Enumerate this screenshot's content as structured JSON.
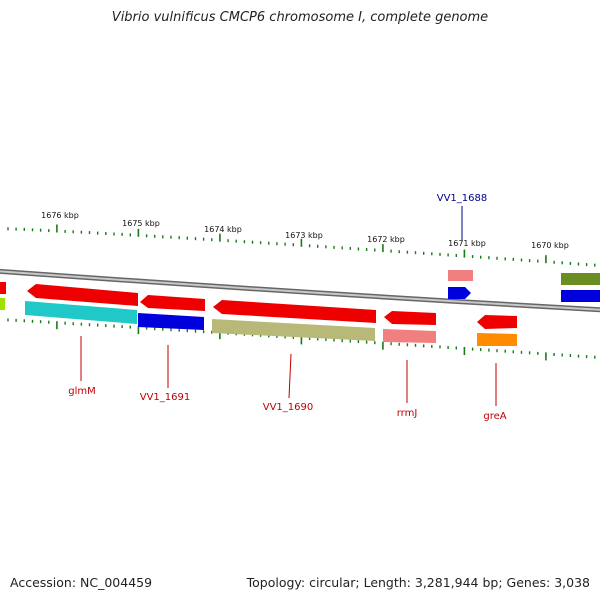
{
  "title": "Vibrio vulnificus CMCP6 chromosome I, complete genome",
  "footer": {
    "accession": "Accession: NC_004459",
    "summary": "Topology: circular; Length: 3,281,944 bp; Genes: 3,038"
  },
  "ruler_labels": [
    "1676 kbp",
    "1675 kbp",
    "1674 kbp",
    "1673 kbp",
    "1672 kbp",
    "1671 kbp",
    "1670 kbp"
  ],
  "gene_labels": [
    {
      "text": "VV1_1688",
      "color": "#00008b"
    },
    {
      "text": "glmM",
      "color": "#c00000"
    },
    {
      "text": "VV1_1691",
      "color": "#c00000"
    },
    {
      "text": "VV1_1690",
      "color": "#c00000"
    },
    {
      "text": "rrmJ",
      "color": "#c00000"
    },
    {
      "text": "greA",
      "color": "#c00000"
    }
  ],
  "colors": {
    "backbone": "#8f8f8f",
    "tick": "#1a7a1a",
    "red": "#ee0000",
    "cyan": "#20c8c8",
    "blue": "#0000dd",
    "olive": "#b8b878",
    "pink": "#f08080",
    "orange": "#ff8c00",
    "darkolive": "#6b8e23",
    "lime": "#a0e000"
  }
}
